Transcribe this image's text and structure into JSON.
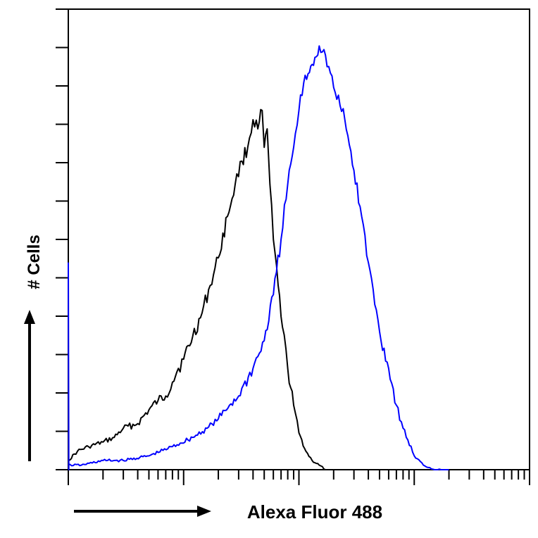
{
  "chart_data": {
    "type": "line",
    "title": "",
    "xlabel": "Alexa Fluor 488",
    "ylabel": "# Cells",
    "x_scale": "log",
    "xlim": [
      1,
      10000
    ],
    "ylim": [
      0,
      100
    ],
    "grid": false,
    "legend": "none",
    "series": [
      {
        "color": "#000000",
        "x": [
          1,
          1.2,
          1.5,
          2,
          2.5,
          3,
          4,
          5,
          6,
          7,
          8,
          9,
          10,
          12,
          14,
          17,
          20,
          24,
          28,
          32,
          36,
          40,
          44,
          48,
          50,
          53,
          56,
          60,
          66,
          72,
          80,
          90,
          100,
          115,
          130,
          150,
          170
        ],
        "y": [
          2,
          4,
          5,
          6,
          7,
          9,
          10,
          13,
          15,
          16,
          19,
          22,
          24,
          29,
          33,
          40,
          46,
          55,
          62,
          67,
          70,
          76,
          74,
          78,
          70,
          74,
          62,
          50,
          40,
          31,
          22,
          14,
          8,
          4,
          2,
          1,
          0
        ]
      },
      {
        "color": "#0000ff",
        "x": [
          1,
          1.3,
          2,
          3,
          5,
          8,
          12,
          16,
          20,
          25,
          30,
          40,
          50,
          60,
          70,
          80,
          90,
          100,
          110,
          120,
          130,
          150,
          170,
          200,
          250,
          300,
          350,
          400,
          500,
          600,
          700,
          800,
          1000,
          1200,
          1500,
          2000
        ],
        "y": [
          1,
          1,
          2,
          2,
          3,
          5,
          7,
          9,
          11,
          14,
          16,
          22,
          28,
          38,
          50,
          62,
          70,
          78,
          84,
          86,
          88,
          92,
          90,
          83,
          76,
          65,
          55,
          45,
          30,
          22,
          14,
          9,
          3,
          1,
          0,
          0
        ]
      },
      {
        "color": "#0000ff",
        "x": [
          1,
          1.01,
          1.02
        ],
        "y": [
          45,
          0,
          0
        ]
      }
    ]
  }
}
